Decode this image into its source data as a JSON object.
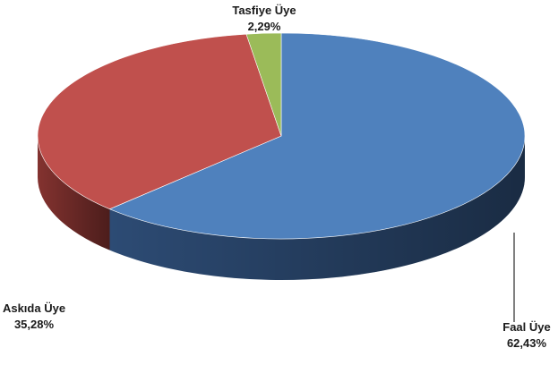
{
  "chart_data": {
    "type": "pie",
    "style": "3d",
    "title": "",
    "slices": [
      {
        "label": "Faal Üye",
        "value": 62.43,
        "value_text": "62,43%",
        "color": "#4f81bd",
        "dark": "#2f4f7a"
      },
      {
        "label": "Askıda Üye",
        "value": 35.28,
        "value_text": "35,28%",
        "color": "#c0504d",
        "dark": "#8a3532"
      },
      {
        "label": "Tasfiye Üye",
        "value": 2.29,
        "value_text": "2,29%",
        "color": "#9bbb59",
        "dark": "#6f8a3c"
      }
    ]
  }
}
